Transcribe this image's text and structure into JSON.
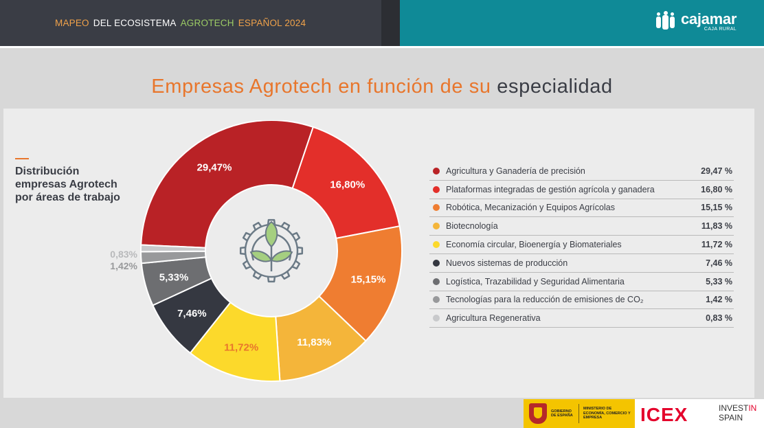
{
  "header": {
    "title_parts": [
      {
        "text": "MAPEO",
        "color": "#f0a24a"
      },
      {
        "text": "DEL ECOSISTEMA",
        "color": "#ffffff"
      },
      {
        "text": "AGROTECH",
        "color": "#9ccc65"
      },
      {
        "text": "ESPAÑOL 2024",
        "color": "#f0a24a"
      }
    ],
    "logo_name": "cajamar",
    "logo_sub": "CAJA RURAL"
  },
  "title": {
    "part1": "Empresas Agrotech en función de su",
    "part2": "especialidad"
  },
  "subtitle": "Distribución empresas Agrotech por áreas de trabajo",
  "chart_data": {
    "type": "pie",
    "donut": true,
    "legend_position": "right",
    "series": [
      {
        "name": "Agricultura y Ganadería de precisión",
        "value": 29.47,
        "label": "29,47%",
        "legend_value": "29,47 %",
        "color": "#b92226",
        "label_color": "#ffffff"
      },
      {
        "name": "Plataformas integradas de gestión agrícola y ganadera",
        "value": 16.8,
        "label": "16,80%",
        "legend_value": "16,80 %",
        "color": "#e32f2a",
        "label_color": "#ffffff"
      },
      {
        "name": "Robótica, Mecanización y Equipos Agrícolas",
        "value": 15.15,
        "label": "15,15%",
        "legend_value": "15,15 %",
        "color": "#ef7d31",
        "label_color": "#ffffff"
      },
      {
        "name": "Biotecnología",
        "value": 11.83,
        "label": "11,83%",
        "legend_value": "11,83 %",
        "color": "#f4b53a",
        "label_color": "#ffffff"
      },
      {
        "name": "Economía circular, Bioenergía y Biomateriales",
        "value": 11.72,
        "label": "11,72%",
        "legend_value": "11,72 %",
        "color": "#fcd92b",
        "label_color": "#e8762c"
      },
      {
        "name": "Nuevos sistemas de producción",
        "value": 7.46,
        "label": "7,46%",
        "legend_value": "7,46 %",
        "color": "#353841",
        "label_color": "#ffffff"
      },
      {
        "name": "Logística, Trazabilidad y Seguridad Alimentaria",
        "value": 5.33,
        "label": "5,33%",
        "legend_value": "5,33 %",
        "color": "#6d6e71",
        "label_color": "#ffffff"
      },
      {
        "name": "Tecnologías para la reducción de emisiones de CO₂",
        "value": 1.42,
        "label": "1,42%",
        "legend_value": "1,42 %",
        "color": "#98999b",
        "label_color": "#98999b"
      },
      {
        "name": "Agricultura Regenerativa",
        "value": 0.83,
        "label": "0,83%",
        "legend_value": "0,83 %",
        "color": "#c8c9cb",
        "label_color": "#b8b9bb"
      }
    ]
  },
  "footer": {
    "gob_text1": "GOBIERNO DE ESPAÑA",
    "gob_text2": "MINISTERIO DE ECONOMÍA, COMERCIO Y EMPRESA",
    "icex": "ICEX",
    "invest_a": "INVEST",
    "invest_b": "IN",
    "invest_c": "SPAIN"
  },
  "icons": {
    "center": "gear-plant-icon",
    "logo": "cajamar-people-icon",
    "shield": "coat-of-arms-icon"
  }
}
